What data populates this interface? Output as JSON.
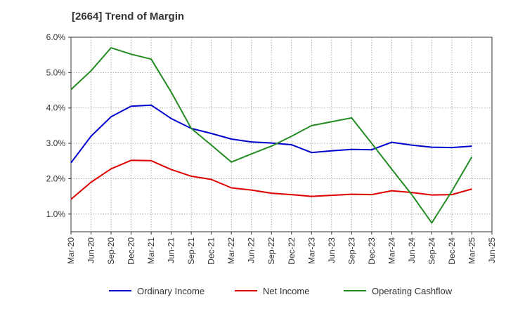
{
  "chart_data": {
    "type": "line",
    "title": "[2664]  Trend of Margin",
    "x": [
      "Mar-20",
      "Jun-20",
      "Sep-20",
      "Dec-20",
      "Mar-21",
      "Jun-21",
      "Sep-21",
      "Dec-21",
      "Mar-22",
      "Jun-22",
      "Sep-22",
      "Dec-22",
      "Mar-23",
      "Jun-23",
      "Sep-23",
      "Dec-23",
      "Mar-24",
      "Jun-24",
      "Sep-24",
      "Dec-24",
      "Mar-25",
      "Jun-25"
    ],
    "ylim": [
      0.5,
      6.0
    ],
    "yticks": [
      1.0,
      2.0,
      3.0,
      4.0,
      5.0,
      6.0
    ],
    "ytick_labels": [
      "1.0%",
      "2.0%",
      "3.0%",
      "4.0%",
      "5.0%",
      "6.0%"
    ],
    "grid": true,
    "legend_position": "bottom",
    "series": [
      {
        "name": "Ordinary Income",
        "color": "#0000cc",
        "values": [
          2.45,
          3.2,
          3.75,
          4.05,
          4.08,
          3.7,
          3.42,
          3.28,
          3.12,
          3.04,
          3.01,
          2.96,
          2.74,
          2.79,
          2.83,
          2.82,
          3.03,
          2.95,
          2.89,
          2.88,
          2.92,
          null
        ]
      },
      {
        "name": "Net Income",
        "color": "#dd0000",
        "values": [
          1.42,
          1.9,
          2.28,
          2.52,
          2.51,
          2.26,
          2.07,
          1.98,
          1.74,
          1.68,
          1.59,
          1.55,
          1.5,
          1.53,
          1.56,
          1.55,
          1.66,
          1.61,
          1.54,
          1.55,
          1.71,
          null
        ]
      },
      {
        "name": "Operating Cashflow",
        "color": "#228b22",
        "values": [
          4.52,
          5.05,
          5.7,
          5.52,
          5.38,
          4.45,
          3.42,
          2.95,
          2.47,
          2.7,
          2.92,
          3.2,
          3.5,
          3.61,
          3.72,
          3.0,
          2.27,
          1.55,
          0.75,
          1.65,
          2.62,
          null
        ]
      }
    ]
  }
}
